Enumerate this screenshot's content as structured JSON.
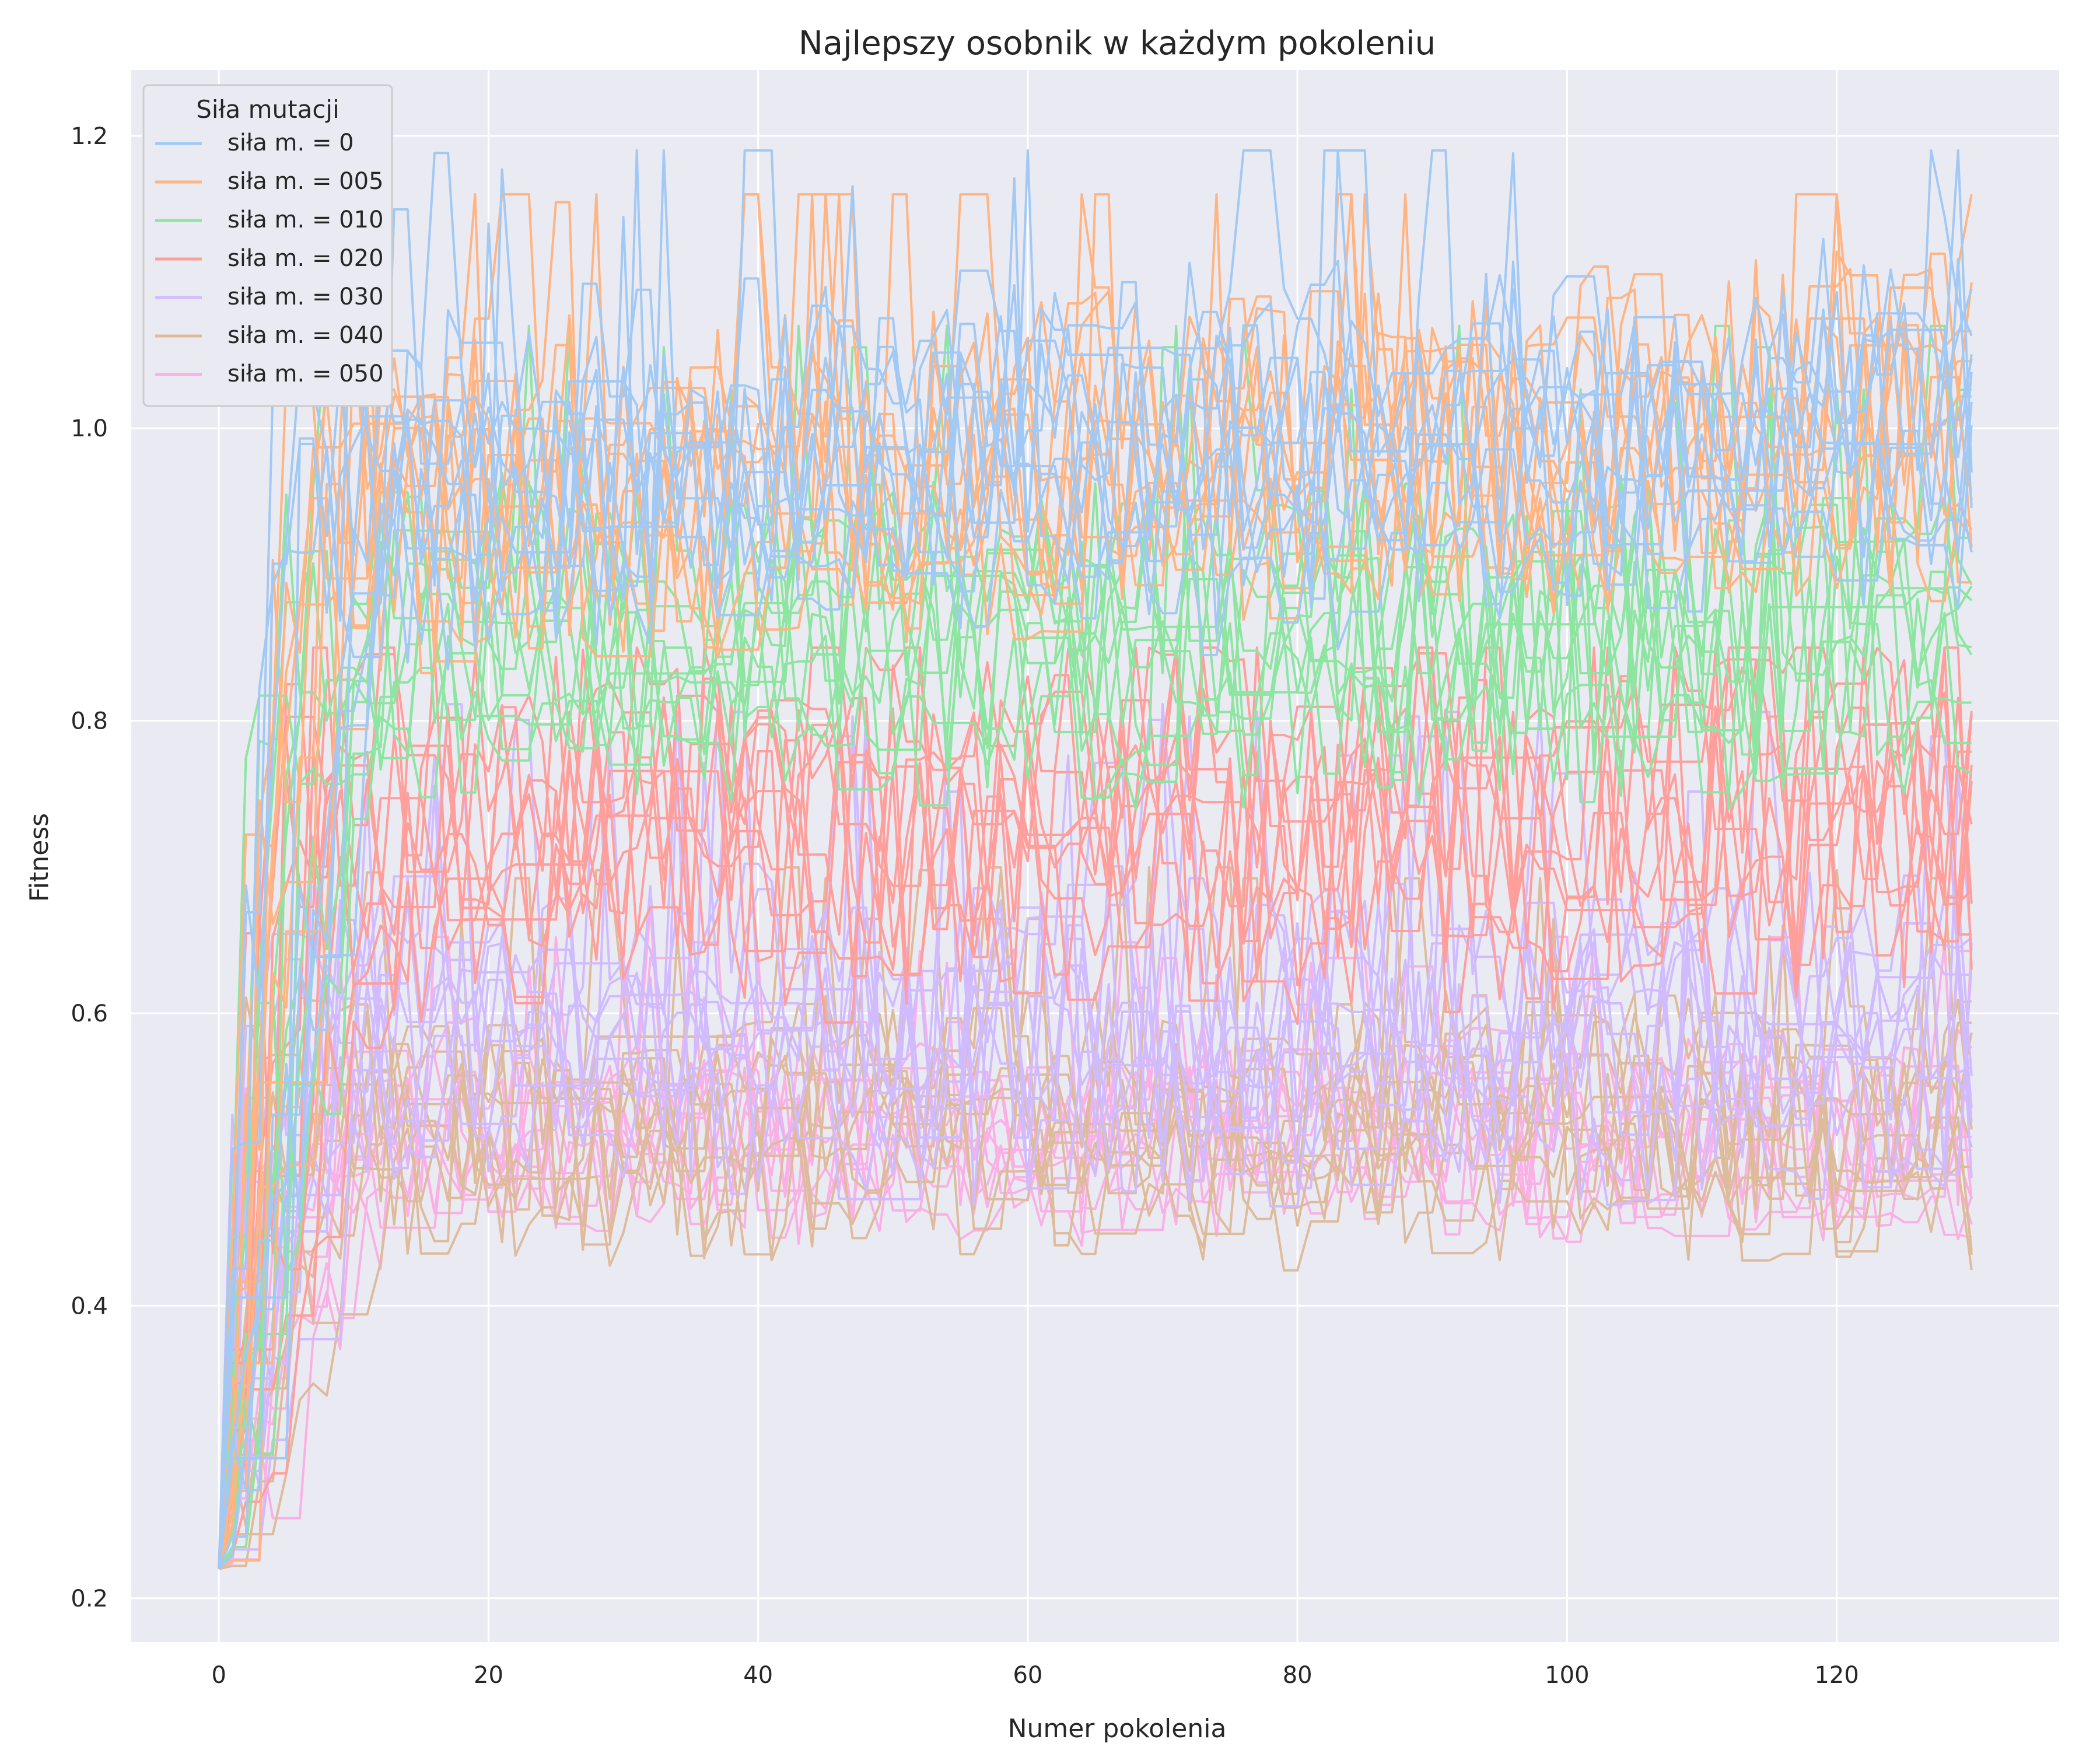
{
  "chart_data": {
    "type": "line",
    "title": "Najlepszy osobnik w każdym pokoleniu",
    "xlabel": "Numer pokolenia",
    "ylabel": "Fitness",
    "xlim": [
      -6.5,
      136.5
    ],
    "ylim": [
      0.17,
      1.245
    ],
    "x_ticks": [
      0,
      20,
      40,
      60,
      80,
      100,
      120
    ],
    "y_ticks": [
      0.2,
      0.4,
      0.6,
      0.8,
      1.0,
      1.2
    ],
    "x_tick_labels": [
      "0",
      "20",
      "40",
      "60",
      "80",
      "100",
      "120"
    ],
    "y_tick_labels": [
      "0.2",
      "0.4",
      "0.6",
      "0.8",
      "1.0",
      "1.2"
    ],
    "grid": true,
    "background": "#eaeaf2",
    "grid_color": "#ffffff",
    "legend": {
      "title": "Siła mutacji",
      "placement": "top-left"
    },
    "series": [
      {
        "name": "siła m. = 0",
        "color": "#a1c9f4",
        "approx_start": 0.22,
        "approx_plateau": 0.95,
        "approx_spread": 0.1,
        "approx_max": 1.19
      },
      {
        "name": "siła m. = 005",
        "color": "#ffb482",
        "approx_start": 0.22,
        "approx_plateau": 0.93,
        "approx_spread": 0.1,
        "approx_max": 1.16
      },
      {
        "name": "siła m. = 010",
        "color": "#8de5a1",
        "approx_start": 0.22,
        "approx_plateau": 0.85,
        "approx_spread": 0.09,
        "approx_max": 1.07
      },
      {
        "name": "siła m. = 020",
        "color": "#ff9f9b",
        "approx_start": 0.22,
        "approx_plateau": 0.72,
        "approx_spread": 0.1,
        "approx_max": 0.85
      },
      {
        "name": "siła m. = 030",
        "color": "#d0bbff",
        "approx_start": 0.22,
        "approx_plateau": 0.58,
        "approx_spread": 0.09,
        "approx_max": 0.82
      },
      {
        "name": "siła m. = 040",
        "color": "#debb9b",
        "approx_start": 0.22,
        "approx_plateau": 0.52,
        "approx_spread": 0.07,
        "approx_max": 0.81
      },
      {
        "name": "siła m. = 050",
        "color": "#fab0e4",
        "approx_start": 0.22,
        "approx_plateau": 0.52,
        "approx_spread": 0.06,
        "approx_max": 0.81
      }
    ]
  }
}
